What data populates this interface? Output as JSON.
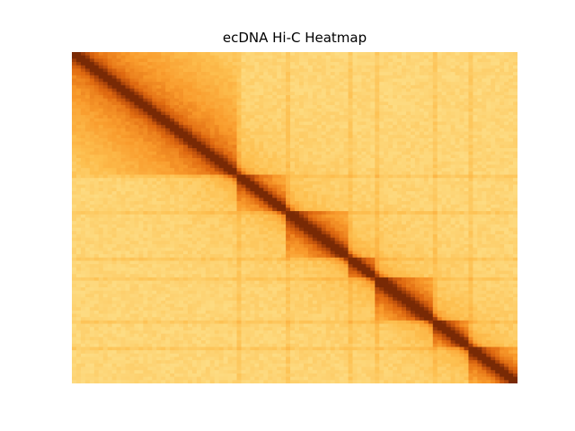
{
  "chart_data": {
    "type": "heatmap",
    "title": "ecDNA Hi-C Heatmap",
    "xlabel": "",
    "ylabel": "",
    "axes_visible": false,
    "grid": false,
    "colormap": "YlOrBr",
    "colormap_stops": [
      "#fff3c4",
      "#fde08a",
      "#fdbf4f",
      "#f99b2c",
      "#e06a10",
      "#b0460a",
      "#7a2a05"
    ],
    "n_bins": 100,
    "diagonal_value": 1.0,
    "background_value": 0.22,
    "domain_boundaries_bins": [
      0,
      37,
      48,
      62,
      68,
      81,
      89,
      100
    ],
    "domain_strength": [
      0.3,
      0.28,
      0.34,
      0.3,
      0.36,
      0.32,
      0.3
    ],
    "boundary_stripe_value": 0.42
  }
}
